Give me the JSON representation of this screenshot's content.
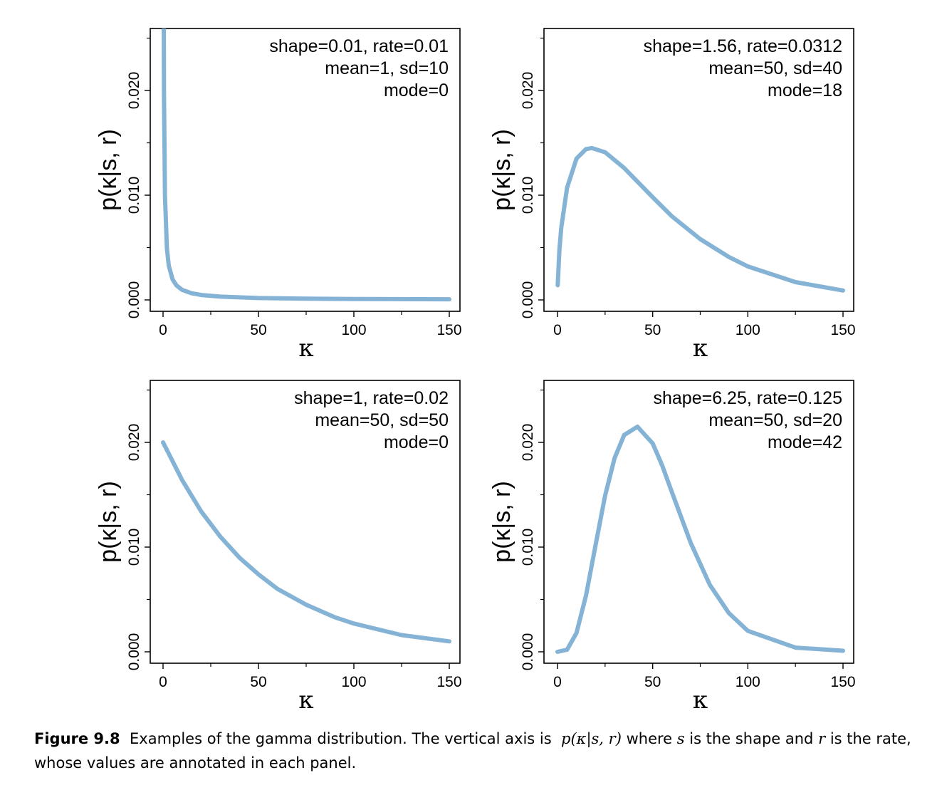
{
  "chart_data": [
    {
      "type": "line",
      "annotation": [
        "shape=0.01, rate=0.01",
        "mean=1, sd=10",
        "mode=0"
      ],
      "xlabel": "κ",
      "ylabel": "p(κ|s, r)",
      "xticks": [
        "0",
        "50",
        "100",
        "150"
      ],
      "yticks": [
        "0.000",
        "0.010",
        "0.020"
      ],
      "xlim": [
        0,
        150
      ],
      "ylim": [
        0,
        0.025
      ],
      "series": [
        {
          "x": [
            0.3,
            0.5,
            1,
            2,
            3,
            5,
            7,
            10,
            15,
            20,
            30,
            50,
            75,
            100,
            150
          ],
          "values": [
            0.0332,
            0.0198,
            0.00995,
            0.00495,
            0.00328,
            0.00195,
            0.00139,
            0.00096,
            0.00063,
            0.00047,
            0.00031,
            0.00018,
            0.00012,
            9e-05,
            6e-05
          ]
        }
      ]
    },
    {
      "type": "line",
      "annotation": [
        "shape=1.56, rate=0.0312",
        "mean=50, sd=40",
        "mode=18"
      ],
      "xlabel": "κ",
      "ylabel": "p(κ|s, r)",
      "xticks": [
        "0",
        "50",
        "100",
        "150"
      ],
      "yticks": [
        "0.000",
        "0.010",
        "0.020"
      ],
      "xlim": [
        0,
        150
      ],
      "ylim": [
        0,
        0.025
      ],
      "series": [
        {
          "x": [
            0.1,
            1,
            2,
            5,
            10,
            15,
            18,
            25,
            35,
            50,
            60,
            75,
            90,
            100,
            125,
            150
          ],
          "values": [
            0.0014,
            0.0048,
            0.0069,
            0.0107,
            0.0135,
            0.0144,
            0.0145,
            0.0141,
            0.0126,
            0.0098,
            0.008,
            0.0058,
            0.0041,
            0.0032,
            0.0017,
            0.0009
          ]
        }
      ]
    },
    {
      "type": "line",
      "annotation": [
        "shape=1, rate=0.02",
        "mean=50, sd=50",
        "mode=0"
      ],
      "xlabel": "κ",
      "ylabel": "p(κ|s, r)",
      "xticks": [
        "0",
        "50",
        "100",
        "150"
      ],
      "yticks": [
        "0.000",
        "0.010",
        "0.020"
      ],
      "xlim": [
        0,
        150
      ],
      "ylim": [
        0,
        0.025
      ],
      "series": [
        {
          "x": [
            0,
            10,
            20,
            30,
            40,
            50,
            60,
            75,
            90,
            100,
            125,
            150
          ],
          "values": [
            0.02,
            0.0164,
            0.0134,
            0.011,
            0.009,
            0.0074,
            0.006,
            0.0045,
            0.0033,
            0.0027,
            0.0016,
            0.001
          ]
        }
      ]
    },
    {
      "type": "line",
      "annotation": [
        "shape=6.25, rate=0.125",
        "mean=50, sd=20",
        "mode=42"
      ],
      "xlabel": "κ",
      "ylabel": "p(κ|s, r)",
      "xticks": [
        "0",
        "50",
        "100",
        "150"
      ],
      "yticks": [
        "0.000",
        "0.010",
        "0.020"
      ],
      "xlim": [
        0,
        150
      ],
      "ylim": [
        0,
        0.025
      ],
      "series": [
        {
          "x": [
            0,
            5,
            10,
            15,
            20,
            25,
            30,
            35,
            42,
            50,
            55,
            60,
            70,
            80,
            90,
            100,
            125,
            150
          ],
          "values": [
            0.0,
            0.0002,
            0.0018,
            0.0054,
            0.0102,
            0.0149,
            0.0185,
            0.0207,
            0.0215,
            0.0199,
            0.0178,
            0.0153,
            0.0104,
            0.0064,
            0.0037,
            0.002,
            0.0004,
            0.0001
          ]
        }
      ]
    }
  ],
  "colors": {
    "curve": "#85b3d6",
    "axis": "#000000"
  },
  "caption": {
    "label": "Figure 9.8",
    "text_1": "Examples of the gamma distribution. The vertical axis is",
    "math": "p(κ|s, r)",
    "text_2": "where",
    "s": "s",
    "text_3": "is the shape and",
    "r": "r",
    "text_4": "is the rate, whose values are annotated in each panel."
  }
}
